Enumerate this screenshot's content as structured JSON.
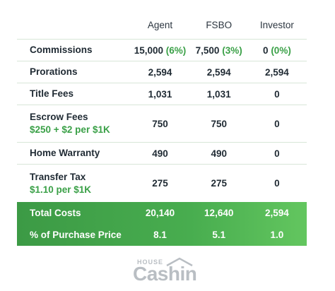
{
  "columns": [
    "Agent",
    "FSBO",
    "Investor"
  ],
  "rows": [
    {
      "label": "Commissions",
      "sub": "",
      "agent": "15,000",
      "agent_pct": "(6%)",
      "fsbo": "7,500",
      "fsbo_pct": "(3%)",
      "investor": "0",
      "investor_pct": "(0%)"
    },
    {
      "label": "Prorations",
      "sub": "",
      "agent": "2,594",
      "fsbo": "2,594",
      "investor": "2,594"
    },
    {
      "label": "Title Fees",
      "sub": "",
      "agent": "1,031",
      "fsbo": "1,031",
      "investor": "0"
    },
    {
      "label": "Escrow Fees",
      "sub": "$250 + $2 per $1K",
      "agent": "750",
      "fsbo": "750",
      "investor": "0"
    },
    {
      "label": "Home Warranty",
      "sub": "",
      "agent": "490",
      "fsbo": "490",
      "investor": "0"
    },
    {
      "label": "Transfer Tax",
      "sub": "$1.10 per $1K",
      "agent": "275",
      "fsbo": "275",
      "investor": "0"
    }
  ],
  "totals": [
    {
      "label": "Total Costs",
      "agent": "20,140",
      "fsbo": "12,640",
      "investor": "2,594"
    },
    {
      "label": "% of Purchase Price",
      "agent": "8.1",
      "fsbo": "5.1",
      "investor": "1.0"
    }
  ],
  "logo": {
    "top": "HOUSE",
    "main": "Cashin"
  }
}
